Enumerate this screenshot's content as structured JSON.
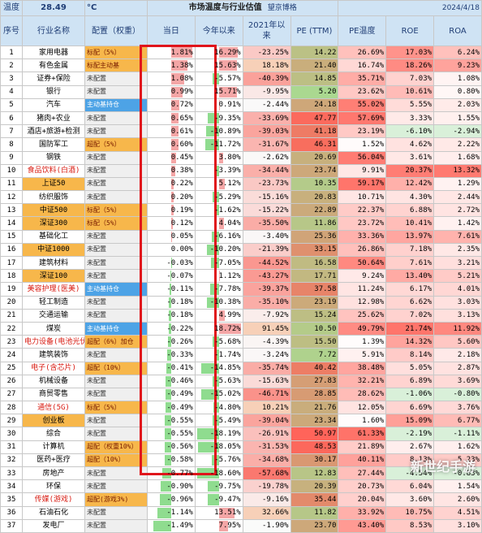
{
  "header": {
    "temp_label": "温度",
    "temp_value": "28.49",
    "temp_unit": "°C",
    "title": "市场温度与行业估值",
    "brand": "望京博格",
    "date": "2024/4/18"
  },
  "columns": [
    "序号",
    "行业名称",
    "配置（权重）",
    "当日",
    "今年以来",
    "2021年以来",
    "PE (TTM)",
    "PE温度",
    "ROE",
    "ROA"
  ],
  "rows": [
    {
      "no": "1",
      "name": "家用电器",
      "cfg": "标配（5%）",
      "cfg_type": "std",
      "day": "1.81%",
      "ytd": "16.29%",
      "y21": "-23.25%",
      "pe": "14.22",
      "pet": "26.69%",
      "roe": "17.03%",
      "roa": "6.24%"
    },
    {
      "no": "2",
      "name": "有色金属",
      "cfg": "标配主动基",
      "cfg_type": "std",
      "day": "1.38%",
      "ytd": "15.63%",
      "y21": "18.18%",
      "pe": "21.40",
      "pet": "16.74%",
      "roe": "18.26%",
      "roa": "9.23%"
    },
    {
      "no": "3",
      "name": "证券+保险",
      "cfg": "未配置",
      "cfg_type": "none",
      "day": "1.08%",
      "ytd": "-5.57%",
      "y21": "-40.39%",
      "pe": "14.85",
      "pet": "35.71%",
      "roe": "7.03%",
      "roa": "1.08%"
    },
    {
      "no": "4",
      "name": "银行",
      "cfg": "未配置",
      "cfg_type": "none",
      "day": "0.99%",
      "ytd": "15.71%",
      "y21": "-9.95%",
      "pe": "5.20",
      "pet": "23.62%",
      "roe": "10.61%",
      "roa": "0.80%"
    },
    {
      "no": "5",
      "name": "汽车",
      "cfg": "主动基持仓",
      "cfg_type": "active",
      "day": "0.72%",
      "ytd": "0.91%",
      "y21": "-2.44%",
      "pe": "24.18",
      "pet": "55.02%",
      "roe": "5.55%",
      "roa": "2.03%"
    },
    {
      "no": "6",
      "name": "猪肉+农业",
      "cfg": "未配置",
      "cfg_type": "none",
      "day": "0.65%",
      "ytd": "-9.35%",
      "y21": "-33.69%",
      "pe": "47.77",
      "pet": "57.69%",
      "roe": "3.33%",
      "roa": "1.55%"
    },
    {
      "no": "7",
      "name": "酒店+旅游+检测",
      "cfg": "未配置",
      "cfg_type": "none",
      "day": "0.61%",
      "ytd": "-10.89%",
      "y21": "-39.03%",
      "pe": "41.18",
      "pet": "23.19%",
      "roe": "-6.10%",
      "roa": "-2.94%"
    },
    {
      "no": "8",
      "name": "国防军工",
      "cfg": "超配（5%）",
      "cfg_type": "std",
      "day": "0.60%",
      "ytd": "-11.72%",
      "y21": "-31.67%",
      "pe": "46.31",
      "pet": "1.52%",
      "roe": "4.62%",
      "roa": "2.22%"
    },
    {
      "no": "9",
      "name": "钢铁",
      "cfg": "未配置",
      "cfg_type": "none",
      "day": "0.45%",
      "ytd": "3.80%",
      "y21": "-2.62%",
      "pe": "20.69",
      "pet": "56.04%",
      "roe": "3.61%",
      "roa": "1.68%"
    },
    {
      "no": "10",
      "name": "食品饮料(白酒)",
      "cfg": "未配置",
      "cfg_type": "none",
      "day": "0.38%",
      "ytd": "-3.39%",
      "y21": "-34.44%",
      "pe": "23.74",
      "pet": "9.91%",
      "roe": "20.37%",
      "roa": "13.32%"
    },
    {
      "no": "11",
      "name": "上证50",
      "cfg": "未配置",
      "cfg_type": "none",
      "day": "0.22%",
      "ytd": "5.12%",
      "y21": "-23.73%",
      "pe": "10.35",
      "pet": "59.17%",
      "roe": "12.42%",
      "roa": "1.29%"
    },
    {
      "no": "12",
      "name": "纺织服饰",
      "cfg": "未配置",
      "cfg_type": "none",
      "day": "0.20%",
      "ytd": "-5.29%",
      "y21": "-15.16%",
      "pe": "20.83",
      "pet": "10.71%",
      "roe": "4.30%",
      "roa": "2.44%"
    },
    {
      "no": "13",
      "name": "中证500",
      "cfg": "标配（5%）",
      "cfg_type": "std",
      "day": "0.19%",
      "ytd": "-1.62%",
      "y21": "-15.22%",
      "pe": "22.89",
      "pet": "22.37%",
      "roe": "6.88%",
      "roa": "2.72%"
    },
    {
      "no": "14",
      "name": "深证300",
      "cfg": "标配（5%）",
      "cfg_type": "std",
      "day": "0.12%",
      "ytd": "4.04%",
      "y21": "-35.50%",
      "pe": "11.86",
      "pet": "23.72%",
      "roe": "10.41%",
      "roa": "1.42%"
    },
    {
      "no": "15",
      "name": "基础化工",
      "cfg": "未配置",
      "cfg_type": "none",
      "day": "0.05%",
      "ytd": "-6.16%",
      "y21": "-3.40%",
      "pe": "25.36",
      "pet": "33.36%",
      "roe": "13.97%",
      "roa": "7.61%"
    },
    {
      "no": "16",
      "name": "中证1000",
      "cfg": "未配置",
      "cfg_type": "none",
      "day": "0.00%",
      "ytd": "-10.20%",
      "y21": "-21.39%",
      "pe": "33.15",
      "pet": "26.86%",
      "roe": "7.18%",
      "roa": "2.35%"
    },
    {
      "no": "17",
      "name": "建筑材料",
      "cfg": "未配置",
      "cfg_type": "none",
      "day": "-0.03%",
      "ytd": "-7.05%",
      "y21": "-44.52%",
      "pe": "16.58",
      "pet": "50.64%",
      "roe": "7.61%",
      "roa": "3.21%"
    },
    {
      "no": "18",
      "name": "深证100",
      "cfg": "未配置",
      "cfg_type": "none",
      "day": "-0.07%",
      "ytd": "1.12%",
      "y21": "-43.27%",
      "pe": "17.71",
      "pet": "9.24%",
      "roe": "13.40%",
      "roa": "5.21%"
    },
    {
      "no": "19",
      "name": "美容护理(医美)",
      "cfg": "主动基持仓",
      "cfg_type": "active",
      "day": "-0.11%",
      "ytd": "-7.78%",
      "y21": "-39.37%",
      "pe": "37.58",
      "pet": "11.24%",
      "roe": "6.17%",
      "roa": "4.01%"
    },
    {
      "no": "20",
      "name": "轻工制造",
      "cfg": "未配置",
      "cfg_type": "none",
      "day": "-0.18%",
      "ytd": "-10.38%",
      "y21": "-35.10%",
      "pe": "23.19",
      "pet": "12.98%",
      "roe": "6.62%",
      "roa": "3.03%"
    },
    {
      "no": "21",
      "name": "交通运输",
      "cfg": "未配置",
      "cfg_type": "none",
      "day": "-0.18%",
      "ytd": "4.99%",
      "y21": "-7.92%",
      "pe": "15.24",
      "pet": "25.62%",
      "roe": "7.02%",
      "roa": "3.13%"
    },
    {
      "no": "22",
      "name": "煤炭",
      "cfg": "主动基持仓",
      "cfg_type": "active",
      "day": "-0.22%",
      "ytd": "18.72%",
      "y21": "91.45%",
      "pe": "10.50",
      "pet": "49.79%",
      "roe": "21.74%",
      "roa": "11.92%"
    },
    {
      "no": "23",
      "name": "电力设备(电池光伏)",
      "cfg": "超配（6%）加仓",
      "cfg_type": "std",
      "day": "-0.26%",
      "ytd": "-5.68%",
      "y21": "-4.39%",
      "pe": "15.50",
      "pet": "1.39%",
      "roe": "14.32%",
      "roa": "5.60%"
    },
    {
      "no": "24",
      "name": "建筑装饰",
      "cfg": "未配置",
      "cfg_type": "none",
      "day": "-0.33%",
      "ytd": "-1.74%",
      "y21": "-3.24%",
      "pe": "7.72",
      "pet": "5.91%",
      "roe": "8.14%",
      "roa": "2.18%"
    },
    {
      "no": "25",
      "name": "电子(含芯片)",
      "cfg": "超配（10%）",
      "cfg_type": "std",
      "day": "-0.41%",
      "ytd": "-14.85%",
      "y21": "-35.74%",
      "pe": "40.42",
      "pet": "38.48%",
      "roe": "5.05%",
      "roa": "2.87%"
    },
    {
      "no": "26",
      "name": "机械设备",
      "cfg": "未配置",
      "cfg_type": "none",
      "day": "-0.46%",
      "ytd": "-5.63%",
      "y21": "-15.63%",
      "pe": "27.83",
      "pet": "32.21%",
      "roe": "6.89%",
      "roa": "3.69%"
    },
    {
      "no": "27",
      "name": "商贸零售",
      "cfg": "未配置",
      "cfg_type": "none",
      "day": "-0.49%",
      "ytd": "-15.02%",
      "y21": "-46.71%",
      "pe": "28.85",
      "pet": "28.62%",
      "roe": "-1.06%",
      "roa": "-0.80%"
    },
    {
      "no": "28",
      "name": "通信(5G)",
      "cfg": "标配（5%）",
      "cfg_type": "std",
      "day": "-0.49%",
      "ytd": "-4.80%",
      "y21": "10.21%",
      "pe": "21.76",
      "pet": "12.05%",
      "roe": "6.69%",
      "roa": "3.76%"
    },
    {
      "no": "29",
      "name": "创业板",
      "cfg": "未配置",
      "cfg_type": "none",
      "day": "-0.55%",
      "ytd": "-5.49%",
      "y21": "-39.04%",
      "pe": "23.34",
      "pet": "1.60%",
      "roe": "15.09%",
      "roa": "6.77%"
    },
    {
      "no": "30",
      "name": "综合",
      "cfg": "未配置",
      "cfg_type": "none",
      "day": "-0.55%",
      "ytd": "-18.19%",
      "y21": "-26.91%",
      "pe": "50.97",
      "pet": "61.33%",
      "roe": "-2.19%",
      "roa": "-1.11%"
    },
    {
      "no": "31",
      "name": "计算机",
      "cfg": "超配（权重10%）",
      "cfg_type": "std",
      "day": "-0.56%",
      "ytd": "-18.05%",
      "y21": "-31.53%",
      "pe": "48.53",
      "pet": "21.89%",
      "roe": "2.67%",
      "roa": "1.62%"
    },
    {
      "no": "32",
      "name": "医药+医疗",
      "cfg": "超配（10%）",
      "cfg_type": "std",
      "day": "-0.58%",
      "ytd": "-5.76%",
      "y21": "-34.68%",
      "pe": "30.17",
      "pet": "40.11%",
      "roe": "8.13%",
      "roa": "5.23%"
    },
    {
      "no": "33",
      "name": "房地产",
      "cfg": "未配置",
      "cfg_type": "none",
      "day": "-0.77%",
      "ytd": "-18.60%",
      "y21": "-57.68%",
      "pe": "12.83",
      "pet": "27.44%",
      "roe": "-4.54%",
      "roa": "-0.83%"
    },
    {
      "no": "34",
      "name": "环保",
      "cfg": "未配置",
      "cfg_type": "none",
      "day": "-0.90%",
      "ytd": "-9.75%",
      "y21": "-19.78%",
      "pe": "20.39",
      "pet": "20.73%",
      "roe": "6.04%",
      "roa": "1.54%"
    },
    {
      "no": "35",
      "name": "传媒(游戏)",
      "cfg": "超配(游戏3%)",
      "cfg_type": "std",
      "day": "-0.96%",
      "ytd": "-9.47%",
      "y21": "-9.16%",
      "pe": "35.44",
      "pet": "20.04%",
      "roe": "3.60%",
      "roa": "2.60%"
    },
    {
      "no": "36",
      "name": "石油石化",
      "cfg": "未配置",
      "cfg_type": "none",
      "day": "-1.14%",
      "ytd": "13.51%",
      "y21": "32.66%",
      "pe": "11.82",
      "pet": "33.92%",
      "roe": "10.75%",
      "roa": "4.51%"
    },
    {
      "no": "37",
      "name": "发电厂",
      "cfg": "未配置",
      "cfg_type": "none",
      "day": "-1.49%",
      "ytd": "7.95%",
      "y21": "-1.90%",
      "pe": "23.70",
      "pet": "43.40%",
      "roe": "8.53%",
      "roa": "3.10%"
    }
  ],
  "watermark": "新世纪手游",
  "colors": {
    "up": "#f0a0a0",
    "down": "#8fd88f",
    "red": "#e0151b",
    "header": "#cfe3f4",
    "accent_blue": "#2f8fe0"
  }
}
